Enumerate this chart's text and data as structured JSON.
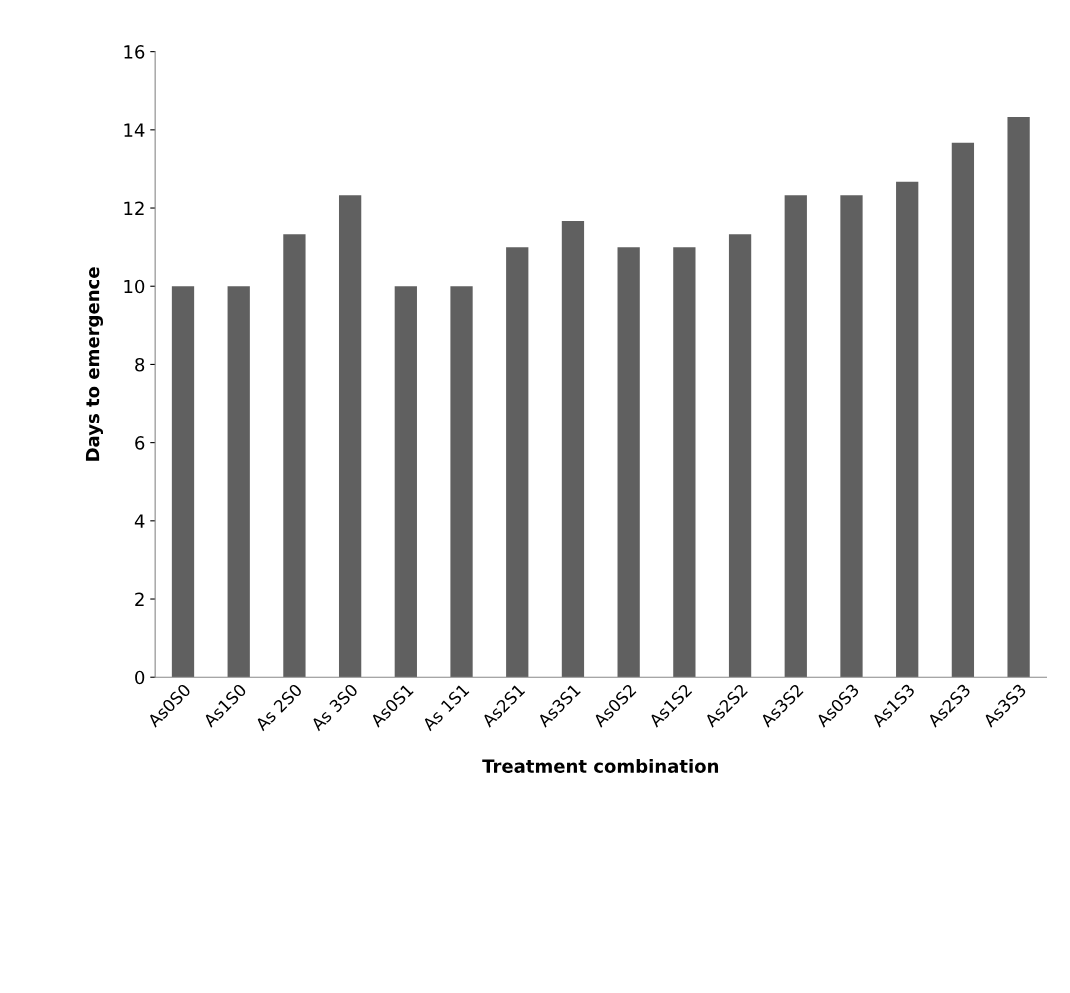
{
  "chart_data": {
    "type": "bar",
    "xlabel": "Treatment combination",
    "ylabel": "Days to emergence",
    "categories": [
      "As0S0",
      "As1S0",
      "As 2S0",
      "As 3S0",
      "As0S1",
      "As 1S1",
      "As2S1",
      "As3S1",
      "As0S2",
      "As1S2",
      "As2S2",
      "As3S2",
      "As0S3",
      "As1S3",
      "As2S3",
      "As3S3"
    ],
    "values": [
      10,
      10,
      11.33,
      12.33,
      10,
      10,
      11,
      11.67,
      11,
      11,
      11.33,
      12.33,
      12.33,
      12.67,
      13.67,
      14.33
    ],
    "color": "#606060",
    "ylim": [
      0,
      16
    ],
    "yticks": [
      0,
      2,
      4,
      6,
      8,
      10,
      12,
      14,
      16
    ],
    "grid": false,
    "legend": false
  }
}
